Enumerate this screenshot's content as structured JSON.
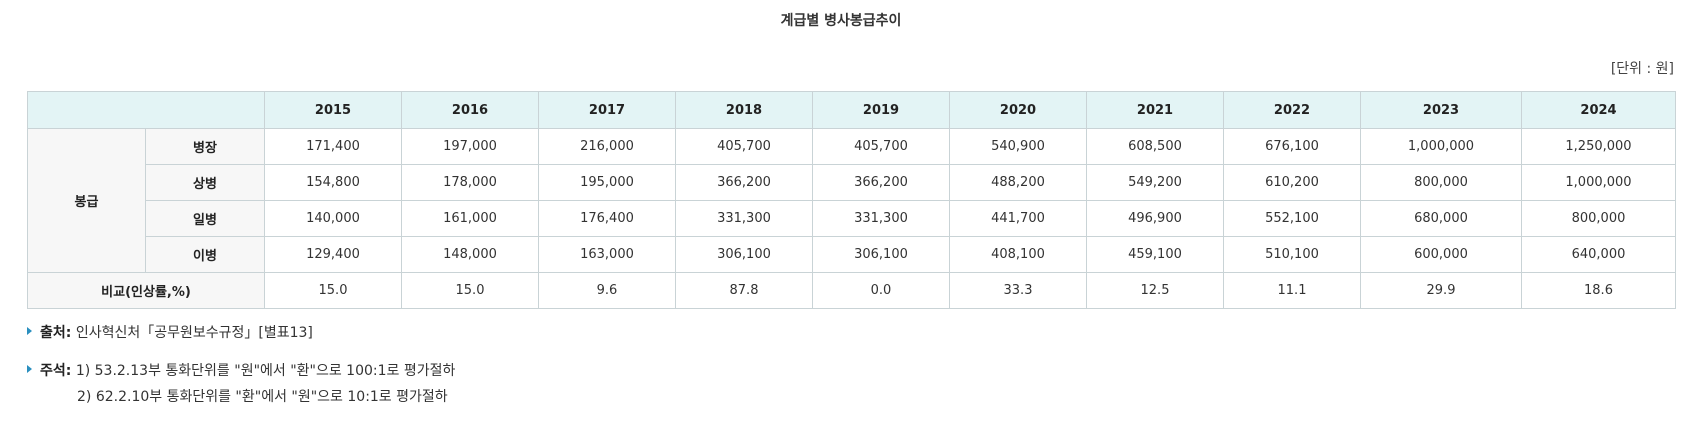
{
  "title": "계급별 병사봉급추이",
  "unit": "[단위 : 원]",
  "table": {
    "years": [
      "2015",
      "2016",
      "2017",
      "2018",
      "2019",
      "2020",
      "2021",
      "2022",
      "2023",
      "2024"
    ],
    "group_label": "봉급",
    "ranks": [
      {
        "rank": "병장",
        "values": [
          "171,400",
          "197,000",
          "216,000",
          "405,700",
          "405,700",
          "540,900",
          "608,500",
          "676,100",
          "1,000,000",
          "1,250,000"
        ]
      },
      {
        "rank": "상병",
        "values": [
          "154,800",
          "178,000",
          "195,000",
          "366,200",
          "366,200",
          "488,200",
          "549,200",
          "610,200",
          "800,000",
          "1,000,000"
        ]
      },
      {
        "rank": "일병",
        "values": [
          "140,000",
          "161,000",
          "176,400",
          "331,300",
          "331,300",
          "441,700",
          "496,900",
          "552,100",
          "680,000",
          "800,000"
        ]
      },
      {
        "rank": "이병",
        "values": [
          "129,400",
          "148,000",
          "163,000",
          "306,100",
          "306,100",
          "408,100",
          "459,100",
          "510,100",
          "600,000",
          "640,000"
        ]
      }
    ],
    "compare_label": "비교(인상률,%)",
    "compare_values": [
      "15.0",
      "15.0",
      "9.6",
      "87.8",
      "0.0",
      "33.3",
      "12.5",
      "11.1",
      "29.9",
      "18.6"
    ]
  },
  "source": {
    "label": "출처:",
    "text": "인사혁신처「공무원보수규정」[별표13]"
  },
  "remarks": {
    "label": "주석:",
    "line1": "1) 53.2.13부 통화단위를 \"원\"에서 \"환\"으로 100:1로 평가절하",
    "line2": "2) 62.2.10부 통화단위를 \"환\"에서 \"원\"으로 10:1로 평가절하"
  },
  "colors": {
    "header_bg": "#e3f4f5",
    "label_bg": "#f7f7f7",
    "border": "#c9d3d6",
    "bullet": "#2a8fbf"
  }
}
